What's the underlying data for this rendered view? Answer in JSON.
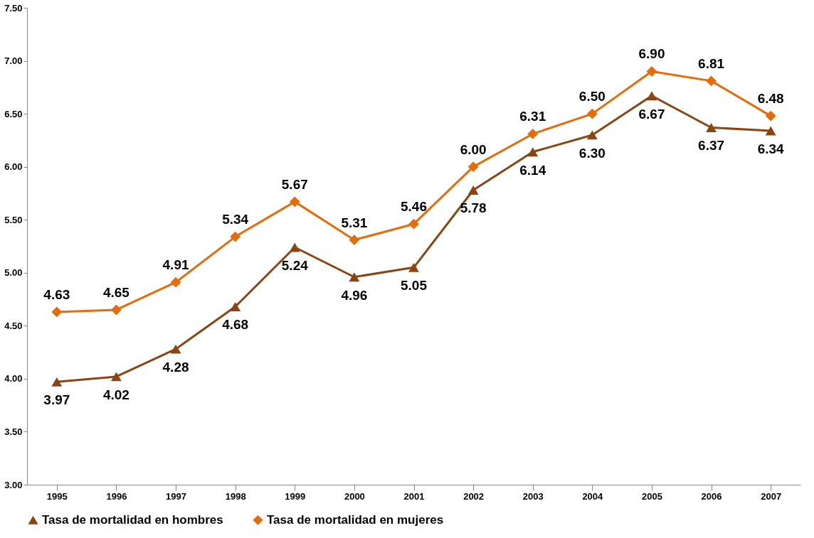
{
  "chart_data": {
    "type": "line",
    "categories": [
      "1995",
      "1996",
      "1997",
      "1998",
      "1999",
      "2000",
      "2001",
      "2002",
      "2003",
      "2004",
      "2005",
      "2006",
      "2007"
    ],
    "series": [
      {
        "name": "Tasa de mortalidad en hombres",
        "color": "#8b4513",
        "marker": "triangle",
        "values": [
          3.97,
          4.02,
          4.28,
          4.68,
          5.24,
          4.96,
          5.05,
          5.78,
          6.14,
          6.3,
          6.67,
          6.37,
          6.34
        ],
        "value_labels": [
          "3.97",
          "4.02",
          "4.28",
          "4.68",
          "5.24",
          "4.96",
          "5.05",
          "5.78",
          "6.14",
          "6.30",
          "6.67",
          "6.37",
          "6.34"
        ]
      },
      {
        "name": "Tasa de mortalidad en mujeres",
        "color": "#e46c0a",
        "marker": "diamond",
        "values": [
          4.63,
          4.65,
          4.91,
          5.34,
          5.67,
          5.31,
          5.46,
          6.0,
          6.31,
          6.5,
          6.9,
          6.81,
          6.48
        ],
        "value_labels": [
          "4.63",
          "4.65",
          "4.91",
          "5.34",
          "5.67",
          "5.31",
          "5.46",
          "6.00",
          "6.31",
          "6.50",
          "6.90",
          "6.81",
          "6.48"
        ]
      }
    ],
    "ylim": [
      3,
      7.5
    ],
    "yticks": [
      {
        "value": 3,
        "label": "3.00"
      },
      {
        "value": 3.5,
        "label": "3.50"
      },
      {
        "value": 4,
        "label": "4.00"
      },
      {
        "value": 4.5,
        "label": "4.50"
      },
      {
        "value": 5,
        "label": "5.00"
      },
      {
        "value": 5.5,
        "label": "5.50"
      },
      {
        "value": 6,
        "label": "6.00"
      },
      {
        "value": 6.5,
        "label": "6.50"
      },
      {
        "value": 7,
        "label": "7.00"
      },
      {
        "value": 7.5,
        "label": "7.50"
      }
    ],
    "grid": false,
    "legend": "bottom",
    "line_style": "solid"
  }
}
